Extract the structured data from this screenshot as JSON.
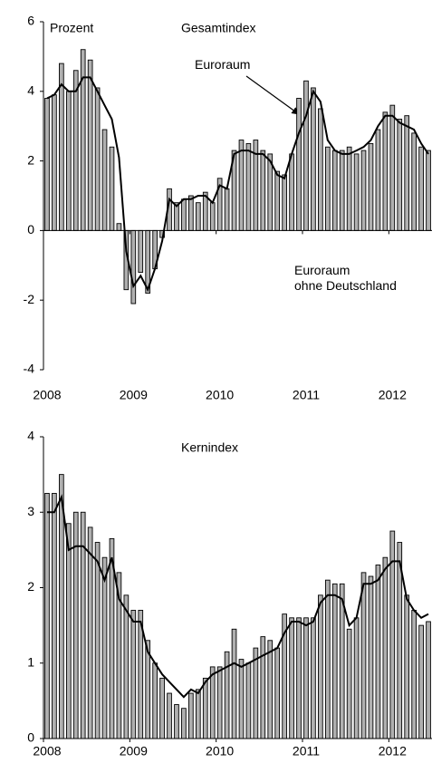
{
  "chart_data": [
    {
      "type": "bar",
      "title": "Gesamtindex",
      "ylabel": "Prozent",
      "categories": [
        "2008",
        null,
        null,
        null,
        null,
        null,
        null,
        null,
        null,
        null,
        null,
        null,
        "2009",
        null,
        null,
        null,
        null,
        null,
        null,
        null,
        null,
        null,
        null,
        null,
        "2010",
        null,
        null,
        null,
        null,
        null,
        null,
        null,
        null,
        null,
        null,
        null,
        "2011",
        null,
        null,
        null,
        null,
        null,
        null,
        null,
        null,
        null,
        null,
        null,
        "2012",
        null,
        null,
        null,
        null,
        null
      ],
      "series": [
        {
          "name": "Euroraum\nohne Deutschland",
          "type": "bar",
          "color": "#b0b0b0",
          "values": [
            3.8,
            3.9,
            4.8,
            4.0,
            4.6,
            5.2,
            4.9,
            4.1,
            2.9,
            2.4,
            0.2,
            -1.7,
            -2.1,
            -1.2,
            -1.8,
            -1.1,
            -0.2,
            1.2,
            0.8,
            0.9,
            1.0,
            0.8,
            1.1,
            0.8,
            1.5,
            1.2,
            2.3,
            2.6,
            2.5,
            2.6,
            2.3,
            2.2,
            1.7,
            1.6,
            2.2,
            3.8,
            4.3,
            4.1,
            3.5,
            2.4,
            2.3,
            2.3,
            2.4,
            2.2,
            2.3,
            2.5,
            2.9,
            3.4,
            3.6,
            3.2,
            3.3,
            2.8,
            2.4,
            2.3
          ]
        },
        {
          "name": "Euroraum",
          "type": "line",
          "color": "#000000",
          "values": [
            3.8,
            3.9,
            4.2,
            4.0,
            4.0,
            4.4,
            4.4,
            4.0,
            3.6,
            3.2,
            2.1,
            -0.6,
            -1.6,
            -1.3,
            -1.7,
            -1.1,
            -0.3,
            0.9,
            0.7,
            0.9,
            0.9,
            1.0,
            1.0,
            0.8,
            1.3,
            1.2,
            2.2,
            2.3,
            2.3,
            2.2,
            2.2,
            2.0,
            1.6,
            1.5,
            2.2,
            2.8,
            3.3,
            4.0,
            3.7,
            2.6,
            2.3,
            2.2,
            2.2,
            2.3,
            2.4,
            2.6,
            3.0,
            3.3,
            3.3,
            3.1,
            3.0,
            2.9,
            2.5,
            2.2
          ]
        }
      ],
      "ylim": [
        -4,
        6
      ],
      "yticks": [
        -4,
        -2,
        0,
        2,
        4,
        6
      ]
    },
    {
      "type": "bar",
      "title": "Kernindex",
      "categories": [
        "2008",
        null,
        null,
        null,
        null,
        null,
        null,
        null,
        null,
        null,
        null,
        null,
        "2009",
        null,
        null,
        null,
        null,
        null,
        null,
        null,
        null,
        null,
        null,
        null,
        "2010",
        null,
        null,
        null,
        null,
        null,
        null,
        null,
        null,
        null,
        null,
        null,
        "2011",
        null,
        null,
        null,
        null,
        null,
        null,
        null,
        null,
        null,
        null,
        null,
        "2012",
        null,
        null,
        null,
        null,
        null
      ],
      "series": [
        {
          "type": "bar",
          "color": "#b0b0b0",
          "values": [
            3.25,
            3.25,
            3.5,
            2.85,
            3.0,
            3.0,
            2.8,
            2.6,
            2.4,
            2.65,
            2.2,
            1.9,
            1.7,
            1.7,
            1.3,
            1.0,
            0.8,
            0.6,
            0.45,
            0.4,
            0.6,
            0.65,
            0.8,
            0.95,
            0.95,
            1.15,
            1.45,
            1.05,
            1.0,
            1.2,
            1.35,
            1.3,
            1.2,
            1.65,
            1.6,
            1.6,
            1.6,
            1.6,
            1.9,
            2.1,
            2.05,
            2.05,
            1.45,
            1.6,
            2.2,
            2.15,
            2.3,
            2.4,
            2.75,
            2.6,
            1.9,
            1.7,
            1.5,
            1.55
          ]
        },
        {
          "type": "line",
          "color": "#000000",
          "values": [
            3.0,
            3.0,
            3.2,
            2.5,
            2.55,
            2.55,
            2.45,
            2.35,
            2.1,
            2.4,
            1.85,
            1.7,
            1.55,
            1.55,
            1.15,
            1.0,
            0.85,
            0.75,
            0.65,
            0.55,
            0.65,
            0.6,
            0.75,
            0.85,
            0.9,
            0.95,
            1.0,
            0.95,
            1.0,
            1.05,
            1.1,
            1.15,
            1.2,
            1.4,
            1.55,
            1.55,
            1.5,
            1.55,
            1.8,
            1.9,
            1.9,
            1.85,
            1.5,
            1.6,
            2.05,
            2.05,
            2.1,
            2.25,
            2.35,
            2.35,
            1.85,
            1.7,
            1.6,
            1.65
          ]
        }
      ],
      "ylim": [
        0,
        4
      ],
      "yticks": [
        0,
        1,
        2,
        3,
        4
      ]
    }
  ]
}
